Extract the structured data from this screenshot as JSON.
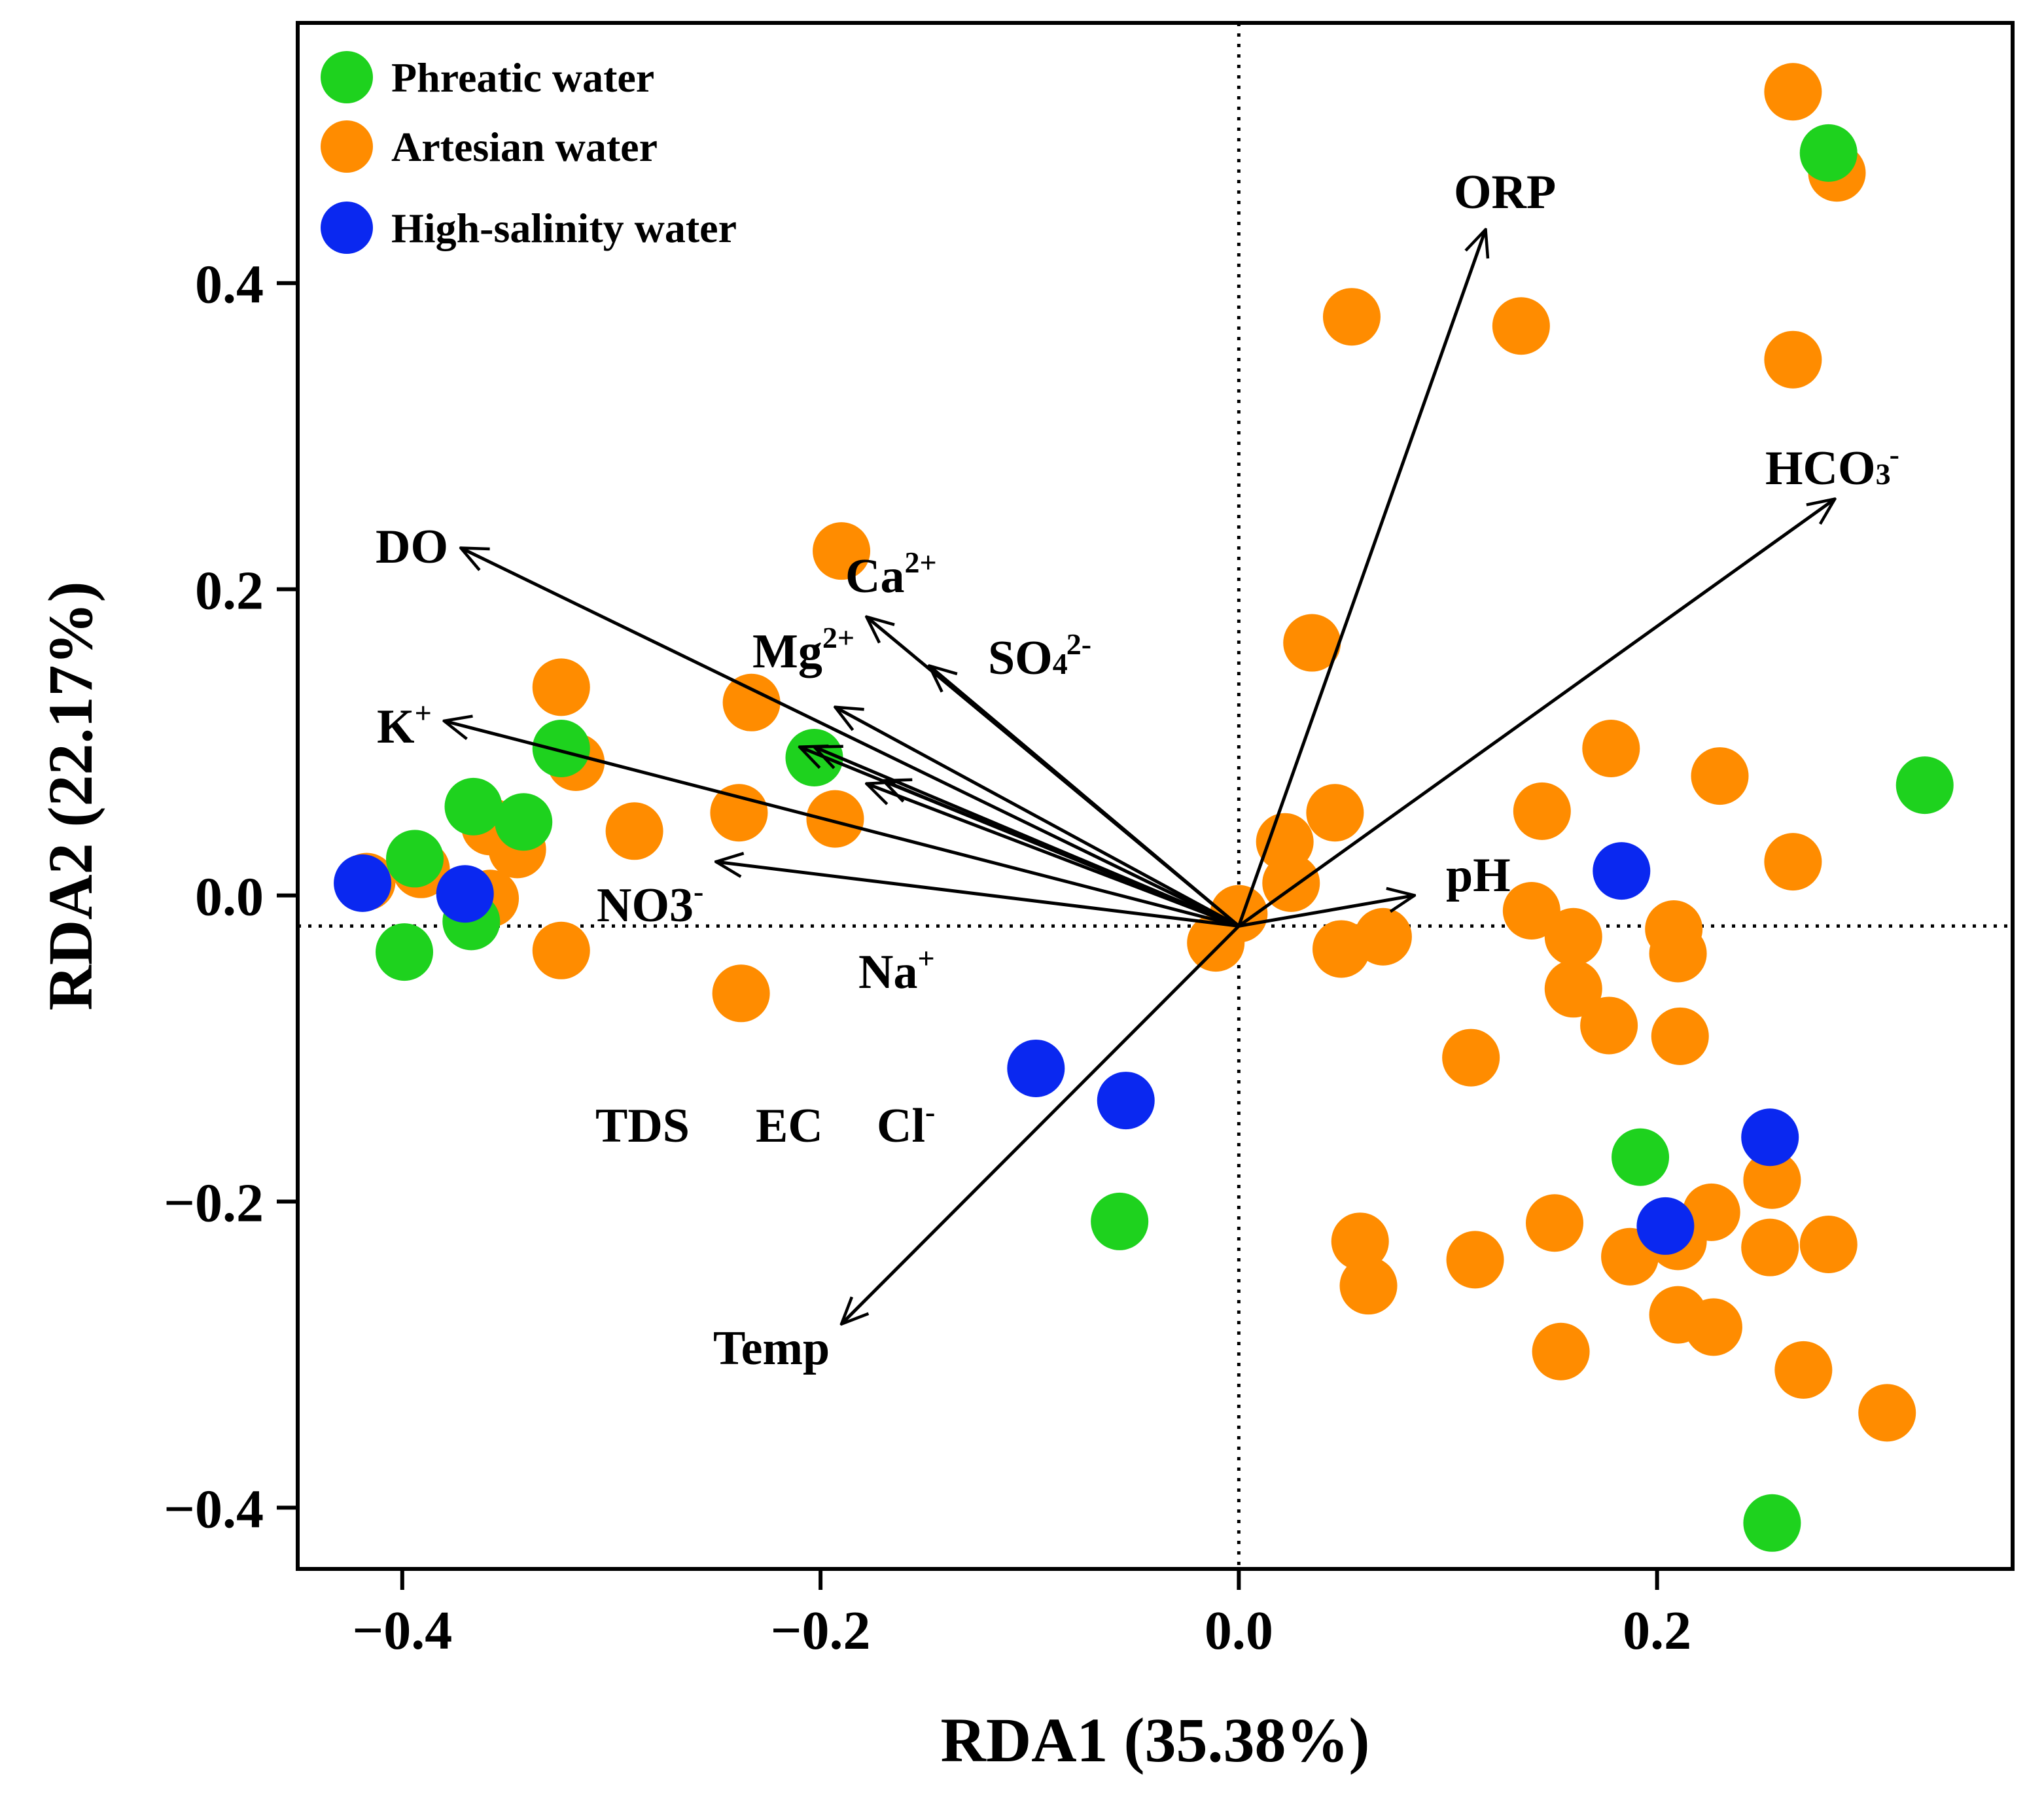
{
  "chart_data": {
    "type": "scatter",
    "subtype": "rda-biplot",
    "xlabel": "RDA1 (35.38%)",
    "ylabel": "RDA2 (22.17%)",
    "xlim": [
      -0.45,
      0.37
    ],
    "ylim": [
      -0.44,
      0.57
    ],
    "x_ticks": [
      -0.4,
      -0.2,
      0.0,
      0.2
    ],
    "x_tick_labels": [
      "−0.4",
      "−0.2",
      "0.0",
      "0.2"
    ],
    "y_ticks": [
      -0.4,
      -0.2,
      0.0,
      0.2,
      0.4
    ],
    "y_tick_labels": [
      "−0.4",
      "−0.2",
      "0.0",
      "0.2",
      "0.4"
    ],
    "reference_lines": {
      "x": 0.0,
      "y": -0.02
    },
    "legend_position": "top-left",
    "series": [
      {
        "name": "Phreatic water",
        "color": "#1ED21E",
        "points": [
          [
            0.282,
            0.485
          ],
          [
            0.328,
            0.072
          ],
          [
            0.192,
            -0.171
          ],
          [
            0.255,
            -0.41
          ],
          [
            -0.057,
            -0.213
          ],
          [
            -0.203,
            0.09
          ],
          [
            -0.324,
            0.096
          ],
          [
            -0.366,
            0.058
          ],
          [
            -0.342,
            0.048
          ],
          [
            -0.394,
            0.024
          ],
          [
            -0.367,
            -0.017
          ],
          [
            -0.399,
            -0.037
          ]
        ]
      },
      {
        "name": "Artesian water",
        "color": "#FF8C00",
        "points": [
          [
            0.265,
            0.525
          ],
          [
            0.286,
            0.472
          ],
          [
            0.265,
            0.35
          ],
          [
            0.054,
            0.378
          ],
          [
            0.135,
            0.372
          ],
          [
            -0.19,
            0.225
          ],
          [
            0.035,
            0.165
          ],
          [
            -0.233,
            0.126
          ],
          [
            -0.324,
            0.136
          ],
          [
            -0.317,
            0.087
          ],
          [
            -0.239,
            0.054
          ],
          [
            -0.193,
            0.05
          ],
          [
            -0.289,
            0.042
          ],
          [
            -0.358,
            0.045
          ],
          [
            -0.345,
            0.03
          ],
          [
            -0.391,
            0.017
          ],
          [
            -0.417,
            0.009
          ],
          [
            -0.358,
            -0.002
          ],
          [
            -0.324,
            -0.036
          ],
          [
            -0.238,
            -0.064
          ],
          [
            0.178,
            0.096
          ],
          [
            0.23,
            0.078
          ],
          [
            0.145,
            0.055
          ],
          [
            0.046,
            0.054
          ],
          [
            0.022,
            0.035
          ],
          [
            0.265,
            0.022
          ],
          [
            0.025,
            0.008
          ],
          [
            0.0,
            -0.012
          ],
          [
            -0.011,
            -0.031
          ],
          [
            0.049,
            -0.035
          ],
          [
            0.069,
            -0.027
          ],
          [
            0.14,
            -0.01
          ],
          [
            0.16,
            -0.027
          ],
          [
            0.208,
            -0.022
          ],
          [
            0.21,
            -0.038
          ],
          [
            0.16,
            -0.061
          ],
          [
            0.177,
            -0.085
          ],
          [
            0.211,
            -0.092
          ],
          [
            0.111,
            -0.106
          ],
          [
            0.255,
            -0.186
          ],
          [
            0.058,
            -0.226
          ],
          [
            0.151,
            -0.214
          ],
          [
            0.226,
            -0.207
          ],
          [
            0.113,
            -0.238
          ],
          [
            0.187,
            -0.236
          ],
          [
            0.21,
            -0.226
          ],
          [
            0.254,
            -0.23
          ],
          [
            0.282,
            -0.228
          ],
          [
            0.062,
            -0.255
          ],
          [
            0.21,
            -0.274
          ],
          [
            0.227,
            -0.282
          ],
          [
            0.154,
            -0.298
          ],
          [
            0.27,
            -0.31
          ],
          [
            0.31,
            -0.338
          ]
        ]
      },
      {
        "name": "High-salinity water",
        "color": "#0A28F0",
        "points": [
          [
            0.183,
            0.016
          ],
          [
            -0.419,
            0.008
          ],
          [
            -0.37,
            0.001
          ],
          [
            -0.097,
            -0.113
          ],
          [
            -0.054,
            -0.134
          ],
          [
            0.254,
            -0.158
          ],
          [
            0.204,
            -0.216
          ]
        ]
      }
    ],
    "vectors": [
      {
        "id": "ORP",
        "label": "ORP",
        "tip": [
          0.118,
          0.435
        ]
      },
      {
        "id": "HCO3",
        "label": "HCO",
        "sub": "3",
        "sup": "-",
        "tip": [
          0.285,
          0.259
        ]
      },
      {
        "id": "pH",
        "label": "pH",
        "tip": [
          0.084,
          0.0
        ]
      },
      {
        "id": "DO",
        "label": "DO",
        "tip": [
          -0.372,
          0.227
        ]
      },
      {
        "id": "Ca",
        "label": "Ca",
        "sup": "2+",
        "tip": [
          -0.178,
          0.182
        ]
      },
      {
        "id": "SO4",
        "label": "SO",
        "sub": "4",
        "sup": "2-",
        "tip": [
          -0.148,
          0.15
        ]
      },
      {
        "id": "Mg",
        "label": "Mg",
        "sup": "2+",
        "tip": [
          -0.193,
          0.123
        ]
      },
      {
        "id": "K",
        "label": "K",
        "sup": "+",
        "tip": [
          -0.38,
          0.114
        ]
      },
      {
        "id": "Cl",
        "label": "Cl",
        "sup": "-",
        "tip": [
          -0.17,
          0.075
        ]
      },
      {
        "id": "Na",
        "label": "Na",
        "sup": "+",
        "tip": [
          -0.178,
          0.073
        ]
      },
      {
        "id": "EC",
        "label": "EC",
        "tip": [
          -0.203,
          0.097
        ]
      },
      {
        "id": "TDS",
        "label": "TDS",
        "tip": [
          -0.21,
          0.097
        ]
      },
      {
        "id": "NO3",
        "label": "NO3",
        "sup": "-",
        "tip": [
          -0.25,
          0.022
        ]
      },
      {
        "id": "Temp",
        "label": "Temp",
        "tip": [
          -0.19,
          -0.28
        ]
      }
    ],
    "vector_origin": [
      0.0,
      -0.02
    ]
  }
}
